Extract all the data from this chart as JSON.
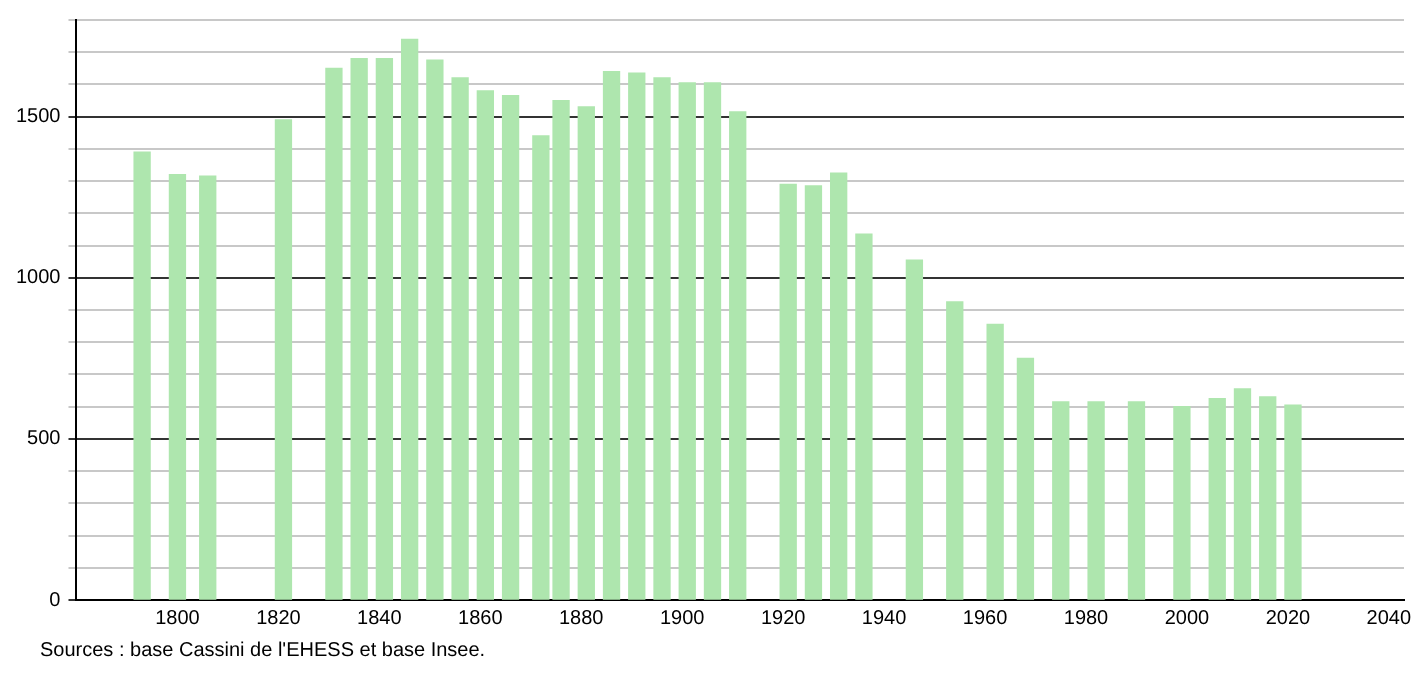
{
  "chart_data": {
    "type": "bar",
    "x": [
      1793,
      1800,
      1806,
      1821,
      1831,
      1836,
      1841,
      1846,
      1851,
      1856,
      1861,
      1866,
      1872,
      1876,
      1881,
      1886,
      1891,
      1896,
      1901,
      1906,
      1911,
      1921,
      1926,
      1931,
      1936,
      1946,
      1954,
      1962,
      1968,
      1975,
      1982,
      1990,
      1999,
      2006,
      2011,
      2016,
      2021
    ],
    "values": [
      1390,
      1320,
      1315,
      1490,
      1650,
      1680,
      1680,
      1740,
      1675,
      1620,
      1580,
      1565,
      1440,
      1550,
      1530,
      1640,
      1635,
      1620,
      1605,
      1605,
      1515,
      1290,
      1285,
      1325,
      1135,
      1055,
      925,
      855,
      750,
      615,
      615,
      615,
      600,
      625,
      655,
      630,
      605
    ],
    "color": "#aee6ae",
    "xlim": [
      1780,
      2043
    ],
    "xticks": [
      1800,
      1820,
      1840,
      1860,
      1880,
      1900,
      1920,
      1940,
      1960,
      1980,
      2000,
      2020,
      2040
    ],
    "ylim": [
      0,
      1800
    ],
    "yticks": [
      0,
      {
        "value": 100,
        "label": null
      },
      {
        "value": 200,
        "label": null
      },
      {
        "value": 300,
        "label": null
      },
      {
        "value": 400,
        "label": null
      },
      500,
      {
        "value": 600,
        "label": null
      },
      {
        "value": 700,
        "label": null
      },
      {
        "value": 800,
        "label": null
      },
      {
        "value": 900,
        "label": null
      },
      1000,
      {
        "value": 1100,
        "label": null
      },
      {
        "value": 1200,
        "label": null
      },
      {
        "value": 1300,
        "label": null
      },
      {
        "value": 1400,
        "label": null
      },
      1500,
      {
        "value": 1600,
        "label": null
      },
      {
        "value": 1700,
        "label": null
      },
      {
        "value": 1800,
        "label": null
      }
    ],
    "grid": "y",
    "legend": false,
    "annotations": [
      "Sources : base Cassini de l'EHESS et base Insee."
    ]
  }
}
